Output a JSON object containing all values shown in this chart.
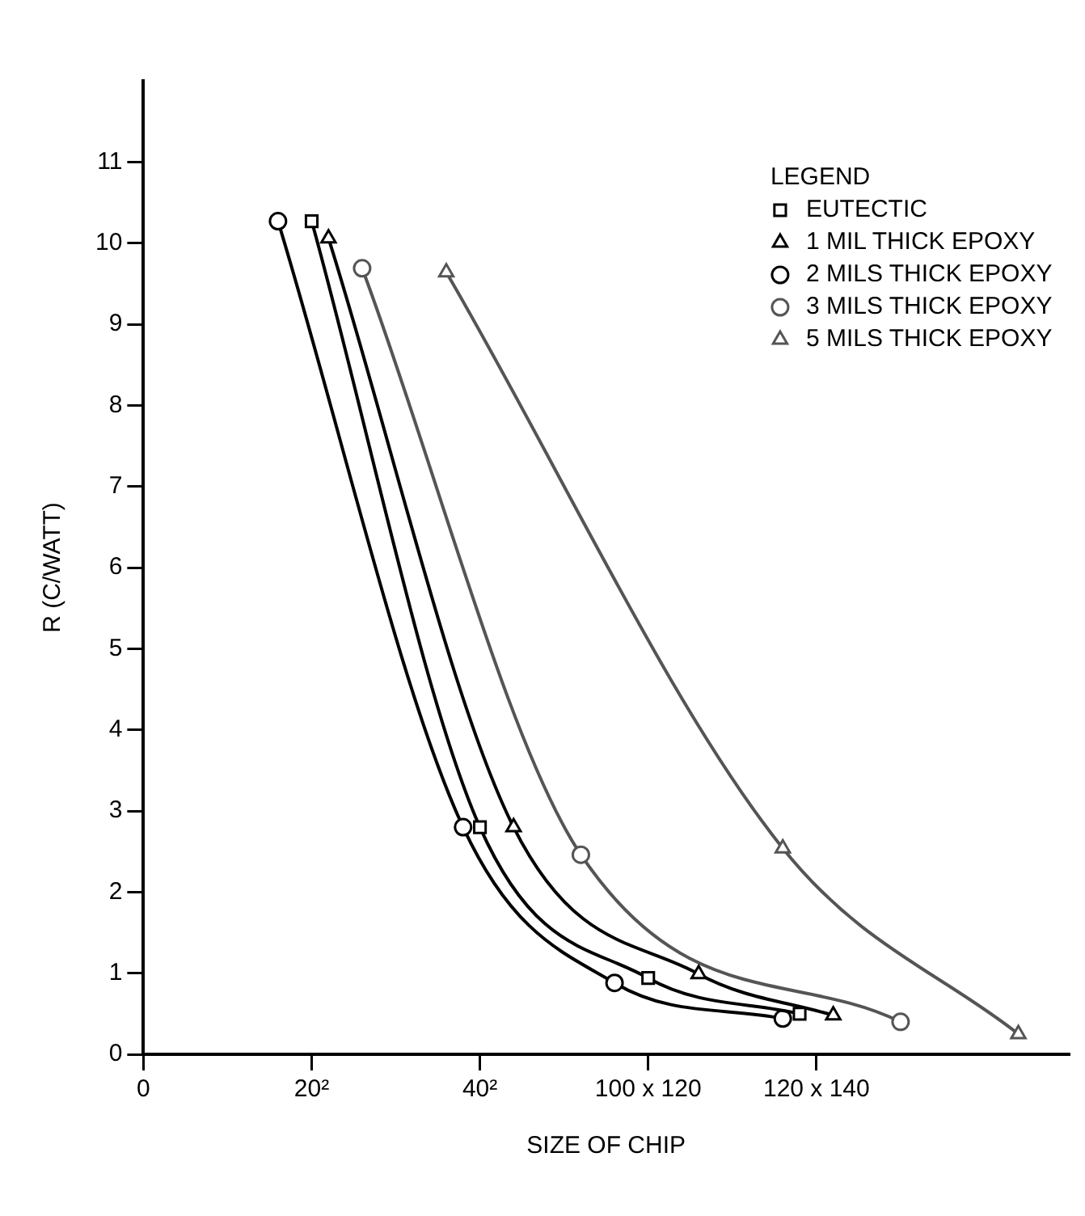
{
  "chart_data": {
    "type": "line",
    "xlabel": "SIZE OF CHIP",
    "ylabel": "R (C/WATT)",
    "legend_title": "LEGEND",
    "legend": "top right",
    "grid": false,
    "line_style": "solid",
    "categories": [
      "0",
      null,
      null,
      null,
      null,
      null,
      null,
      null,
      null,
      null,
      "20²",
      null,
      null,
      null,
      null,
      null,
      null,
      null,
      null,
      null,
      "40²",
      null,
      null,
      null,
      null,
      null,
      null,
      null,
      null,
      null,
      "100 x 120",
      null,
      null,
      null,
      null,
      null,
      null,
      null,
      null,
      null,
      "120 x 140",
      null,
      null,
      null,
      null,
      null,
      null,
      null,
      null,
      null,
      null,
      null,
      null,
      null,
      null,
      null
    ],
    "ylim": [
      0,
      12
    ],
    "yticks": [
      0,
      1,
      2,
      3,
      4,
      5,
      6,
      7,
      8,
      9,
      10,
      11
    ],
    "series": [
      {
        "name": "EUTECTIC",
        "color": "#000000",
        "marker": "square",
        "values": [
          null,
          null,
          null,
          null,
          null,
          null,
          null,
          null,
          null,
          null,
          10.27,
          null,
          null,
          null,
          null,
          null,
          null,
          null,
          null,
          null,
          2.8,
          null,
          null,
          null,
          null,
          null,
          null,
          null,
          null,
          null,
          0.94,
          null,
          null,
          null,
          null,
          null,
          null,
          null,
          null,
          0.5,
          null,
          null,
          null,
          null,
          null,
          null,
          null,
          null,
          null,
          null,
          null,
          null,
          null,
          null,
          null,
          null
        ]
      },
      {
        "name": "1 MIL THICK EPOXY",
        "color": "#000000",
        "marker": "triangle",
        "values": [
          null,
          null,
          null,
          null,
          null,
          null,
          null,
          null,
          null,
          null,
          null,
          10.06,
          null,
          null,
          null,
          null,
          null,
          null,
          null,
          null,
          null,
          null,
          2.8,
          null,
          null,
          null,
          null,
          null,
          null,
          null,
          null,
          null,
          null,
          0.99,
          null,
          null,
          null,
          null,
          null,
          null,
          null,
          0.48,
          null,
          null,
          null,
          null,
          null,
          null,
          null,
          null,
          null,
          null,
          null,
          null,
          null,
          null
        ]
      },
      {
        "name": "2 MILS THICK EPOXY",
        "color": "#000000",
        "marker": "circle",
        "values": [
          null,
          null,
          null,
          null,
          null,
          null,
          null,
          null,
          10.27,
          null,
          null,
          null,
          null,
          null,
          null,
          null,
          null,
          null,
          null,
          2.8,
          null,
          null,
          null,
          null,
          null,
          null,
          null,
          null,
          0.88,
          null,
          null,
          null,
          null,
          null,
          null,
          null,
          null,
          null,
          0.44,
          null,
          null,
          null,
          null,
          null,
          null,
          null,
          null,
          null,
          null,
          null,
          null,
          null,
          null,
          null,
          null,
          null
        ]
      },
      {
        "name": "3 MILS THICK EPOXY",
        "color": "#555555",
        "marker": "circle",
        "values": [
          null,
          null,
          null,
          null,
          null,
          null,
          null,
          null,
          null,
          null,
          null,
          null,
          null,
          9.69,
          null,
          null,
          null,
          null,
          null,
          null,
          null,
          null,
          null,
          null,
          null,
          null,
          2.46,
          null,
          null,
          null,
          null,
          null,
          null,
          null,
          null,
          null,
          null,
          null,
          null,
          null,
          null,
          null,
          null,
          null,
          null,
          0.4,
          null,
          null,
          null,
          null,
          null,
          null,
          null,
          null,
          null,
          null
        ]
      },
      {
        "name": "5 MILS THICK EPOXY",
        "color": "#555555",
        "marker": "triangle",
        "values": [
          null,
          null,
          null,
          null,
          null,
          null,
          null,
          null,
          null,
          null,
          null,
          null,
          null,
          null,
          null,
          null,
          null,
          null,
          9.64,
          null,
          null,
          null,
          null,
          null,
          null,
          null,
          null,
          null,
          null,
          null,
          null,
          null,
          null,
          null,
          null,
          null,
          null,
          null,
          2.54,
          null,
          null,
          null,
          null,
          null,
          null,
          null,
          null,
          null,
          null,
          null,
          null,
          null,
          0.25,
          null,
          null,
          null
        ]
      }
    ]
  }
}
